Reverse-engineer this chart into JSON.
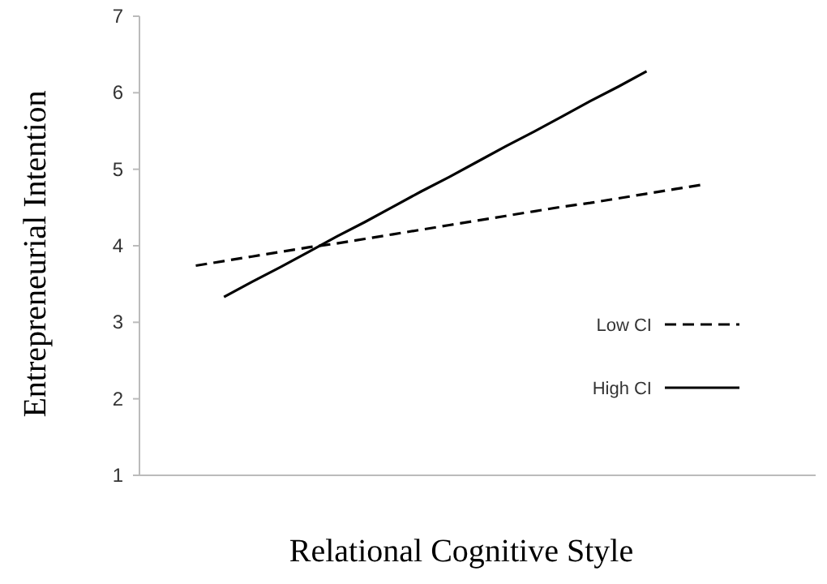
{
  "chart_data": {
    "type": "line",
    "xlabel": "Relational Cognitive Style",
    "ylabel": "Entrepreneurial Intention",
    "categories": [
      null,
      null,
      null,
      null,
      null,
      null,
      null,
      null,
      null,
      null,
      null,
      null,
      null,
      null,
      null,
      null,
      null,
      null,
      null,
      null,
      null,
      null,
      null,
      null,
      null
    ],
    "ylim": [
      1,
      7
    ],
    "yticks": [
      1,
      2,
      3,
      4,
      5,
      6,
      7
    ],
    "legend": "right",
    "marker": "none",
    "series": [
      {
        "name": "Low CI",
        "color": "#000000",
        "line_style": "dashed",
        "values": [
          null,
          null,
          3.74,
          3.8,
          3.86,
          3.92,
          3.98,
          4.03,
          4.09,
          4.15,
          4.21,
          4.27,
          4.33,
          4.39,
          4.45,
          4.51,
          4.56,
          4.62,
          4.68,
          4.74,
          4.8,
          null,
          null,
          null,
          null
        ]
      },
      {
        "name": "High CI",
        "color": "#000000",
        "line_style": "solid",
        "values": [
          null,
          null,
          null,
          3.33,
          3.53,
          3.72,
          3.92,
          4.12,
          4.31,
          4.51,
          4.71,
          4.9,
          5.1,
          5.3,
          5.49,
          5.69,
          5.89,
          6.08,
          6.28,
          null,
          null,
          null,
          null,
          null,
          null
        ]
      }
    ]
  }
}
